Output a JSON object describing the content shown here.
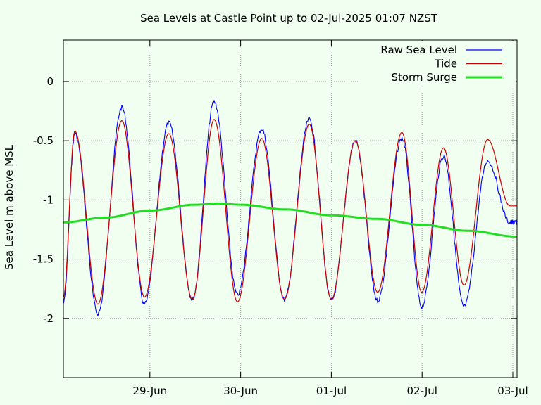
{
  "chart_data": {
    "type": "line",
    "title": "Sea Levels at Castle Point up to 02-Jul-2025 01:07 NZST",
    "xlabel": "",
    "ylabel": "Sea Level m above MSL",
    "ylim": [
      -2.5,
      0.35
    ],
    "yticks": [
      0,
      -0.5,
      -1,
      -1.5,
      -2
    ],
    "ytick_labels": [
      "0",
      "-0.5",
      "-1",
      "-1.5",
      "-2"
    ],
    "xlim": [
      "2025-06-28T01:07",
      "2025-07-03T01:07"
    ],
    "xticks": [
      "2025-06-29T00:00",
      "2025-06-30T00:00",
      "2025-07-01T00:00",
      "2025-07-02T00:00",
      "2025-07-03T00:00"
    ],
    "xtick_labels": [
      "29-Jun",
      "30-Jun",
      "01-Jul",
      "02-Jul",
      "03-Jul"
    ],
    "grid": true,
    "legend_position": "top-right",
    "series": [
      {
        "name": "Raw Sea Level",
        "color": "#0000ff",
        "x": [
          "2025-06-28T01:07",
          "2025-06-28T04:10",
          "2025-06-28T10:15",
          "2025-06-28T16:35",
          "2025-06-28T22:35",
          "2025-06-29T05:00",
          "2025-06-29T11:15",
          "2025-06-29T17:00",
          "2025-06-29T23:10",
          "2025-06-30T05:35",
          "2025-06-30T11:35",
          "2025-06-30T18:10",
          "2025-07-01T00:00",
          "2025-07-01T06:20",
          "2025-07-01T12:15",
          "2025-07-01T18:40",
          "2025-07-01T23:55",
          "2025-07-02T05:40",
          "2025-07-02T11:05",
          "2025-07-02T17:20",
          "2025-07-02T23:15",
          "2025-07-03T01:07"
        ],
        "y": [
          -1.87,
          -0.44,
          -1.96,
          -0.22,
          -1.88,
          -0.35,
          -1.84,
          -0.17,
          -1.8,
          -0.4,
          -1.84,
          -0.32,
          -1.85,
          -0.5,
          -1.85,
          -0.48,
          -1.9,
          -0.63,
          -1.9,
          -0.67,
          -1.19,
          -1.19
        ]
      },
      {
        "name": "Tide",
        "color": "#cc0000",
        "x": [
          "2025-06-28T01:07",
          "2025-06-28T04:10",
          "2025-06-28T10:15",
          "2025-06-28T16:35",
          "2025-06-28T22:35",
          "2025-06-29T05:00",
          "2025-06-29T11:15",
          "2025-06-29T17:00",
          "2025-06-29T23:10",
          "2025-06-30T05:35",
          "2025-06-30T11:35",
          "2025-06-30T18:10",
          "2025-07-01T00:00",
          "2025-07-01T06:20",
          "2025-07-01T12:15",
          "2025-07-01T18:40",
          "2025-07-01T23:55",
          "2025-07-02T05:40",
          "2025-07-02T11:05",
          "2025-07-02T17:20",
          "2025-07-02T23:15",
          "2025-07-03T01:07"
        ],
        "y": [
          -1.82,
          -0.42,
          -1.88,
          -0.33,
          -1.82,
          -0.44,
          -1.84,
          -0.32,
          -1.86,
          -0.48,
          -1.84,
          -0.36,
          -1.84,
          -0.5,
          -1.78,
          -0.43,
          -1.78,
          -0.56,
          -1.72,
          -0.49,
          -1.05,
          -1.05
        ]
      },
      {
        "name": "Storm Surge",
        "color": "#22dd22",
        "x": [
          "2025-06-28T01:07",
          "2025-06-28T12:00",
          "2025-06-29T00:00",
          "2025-06-29T12:00",
          "2025-06-29T18:00",
          "2025-06-30T00:00",
          "2025-06-30T12:00",
          "2025-07-01T00:00",
          "2025-07-01T12:00",
          "2025-07-02T00:00",
          "2025-07-02T12:00",
          "2025-07-03T01:07"
        ],
        "y": [
          -1.19,
          -1.15,
          -1.09,
          -1.04,
          -1.03,
          -1.04,
          -1.08,
          -1.13,
          -1.16,
          -1.21,
          -1.26,
          -1.31
        ]
      }
    ]
  }
}
